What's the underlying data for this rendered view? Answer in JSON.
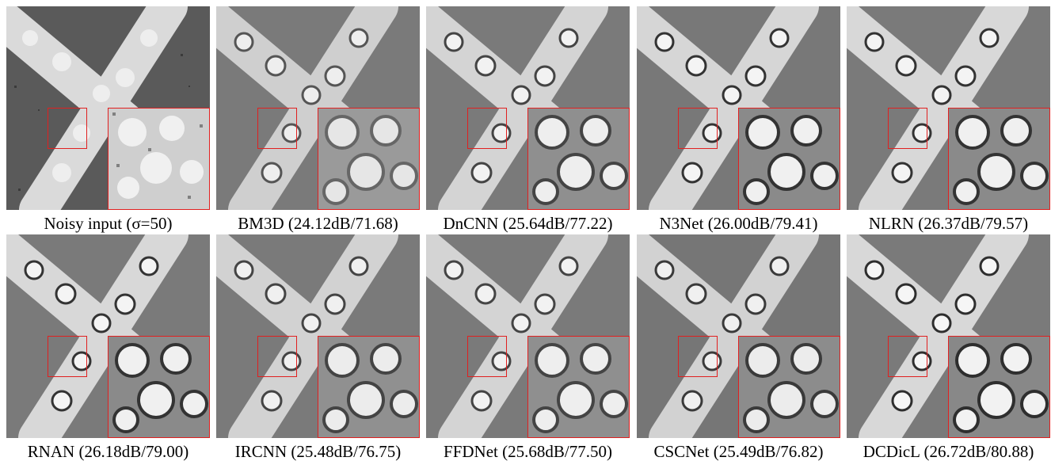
{
  "figure": {
    "panels": [
      {
        "id": "noisy",
        "caption": "Noisy input (σ=50)",
        "noisy": true
      },
      {
        "id": "bm3d",
        "caption": "BM3D (24.12dB/71.68)"
      },
      {
        "id": "dncnn",
        "caption": "DnCNN (25.64dB/77.22)"
      },
      {
        "id": "n3net",
        "caption": "N3Net (26.00dB/79.41)"
      },
      {
        "id": "nlrn",
        "caption": "NLRN (26.37dB/79.57)"
      },
      {
        "id": "rnan",
        "caption": "RNAN (26.18dB/79.00)"
      },
      {
        "id": "ircnn",
        "caption": "IRCNN (25.48dB/76.75)"
      },
      {
        "id": "ffdnet",
        "caption": "FFDNet (25.68dB/77.50)"
      },
      {
        "id": "cscnet",
        "caption": "CSCNet (25.49dB/76.82)"
      },
      {
        "id": "dcdicl",
        "caption": "DCDicL (26.72dB/80.88)"
      }
    ],
    "highlight_color": "#e02020"
  }
}
